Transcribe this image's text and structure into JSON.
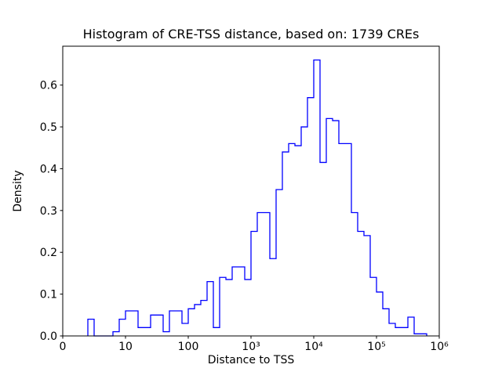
{
  "chart_data": {
    "type": "bar",
    "subtype": "histogram-step",
    "title": "Histogram of CRE-TSS distance, based on: 1739 CREs",
    "xlabel": "Distance to TSS",
    "ylabel": "Density",
    "sample_size": 1739,
    "x_scale": "log10 decades of distance (symlog-style axis)",
    "xlim": [
      0,
      6
    ],
    "ylim": [
      0,
      0.693
    ],
    "grid": false,
    "legend": "none",
    "line_color": "#0000ff",
    "frame_color": "#000000",
    "x_ticks": [
      {
        "pos": 0,
        "label": "0"
      },
      {
        "pos": 1,
        "label": "10"
      },
      {
        "pos": 2,
        "label": "100"
      },
      {
        "pos": 3,
        "label": "10³"
      },
      {
        "pos": 4,
        "label": "10⁴"
      },
      {
        "pos": 5,
        "label": "10⁵"
      },
      {
        "pos": 6,
        "label": "10⁶"
      }
    ],
    "y_ticks": [
      0.0,
      0.1,
      0.2,
      0.3,
      0.4,
      0.5,
      0.6
    ],
    "bin_start": 0.4,
    "bin_width": 0.1,
    "densities": [
      0.04,
      0,
      0,
      0,
      0.01,
      0.04,
      0.06,
      0.06,
      0.02,
      0.02,
      0.05,
      0.05,
      0.01,
      0.06,
      0.06,
      0.03,
      0.065,
      0.075,
      0.085,
      0.13,
      0.02,
      0.14,
      0.135,
      0.165,
      0.165,
      0.135,
      0.25,
      0.295,
      0.295,
      0.185,
      0.35,
      0.44,
      0.46,
      0.455,
      0.5,
      0.57,
      0.66,
      0.415,
      0.52,
      0.515,
      0.46,
      0.46,
      0.295,
      0.25,
      0.24,
      0.14,
      0.105,
      0.065,
      0.03,
      0.02,
      0.02,
      0.045,
      0.005,
      0.005
    ]
  }
}
